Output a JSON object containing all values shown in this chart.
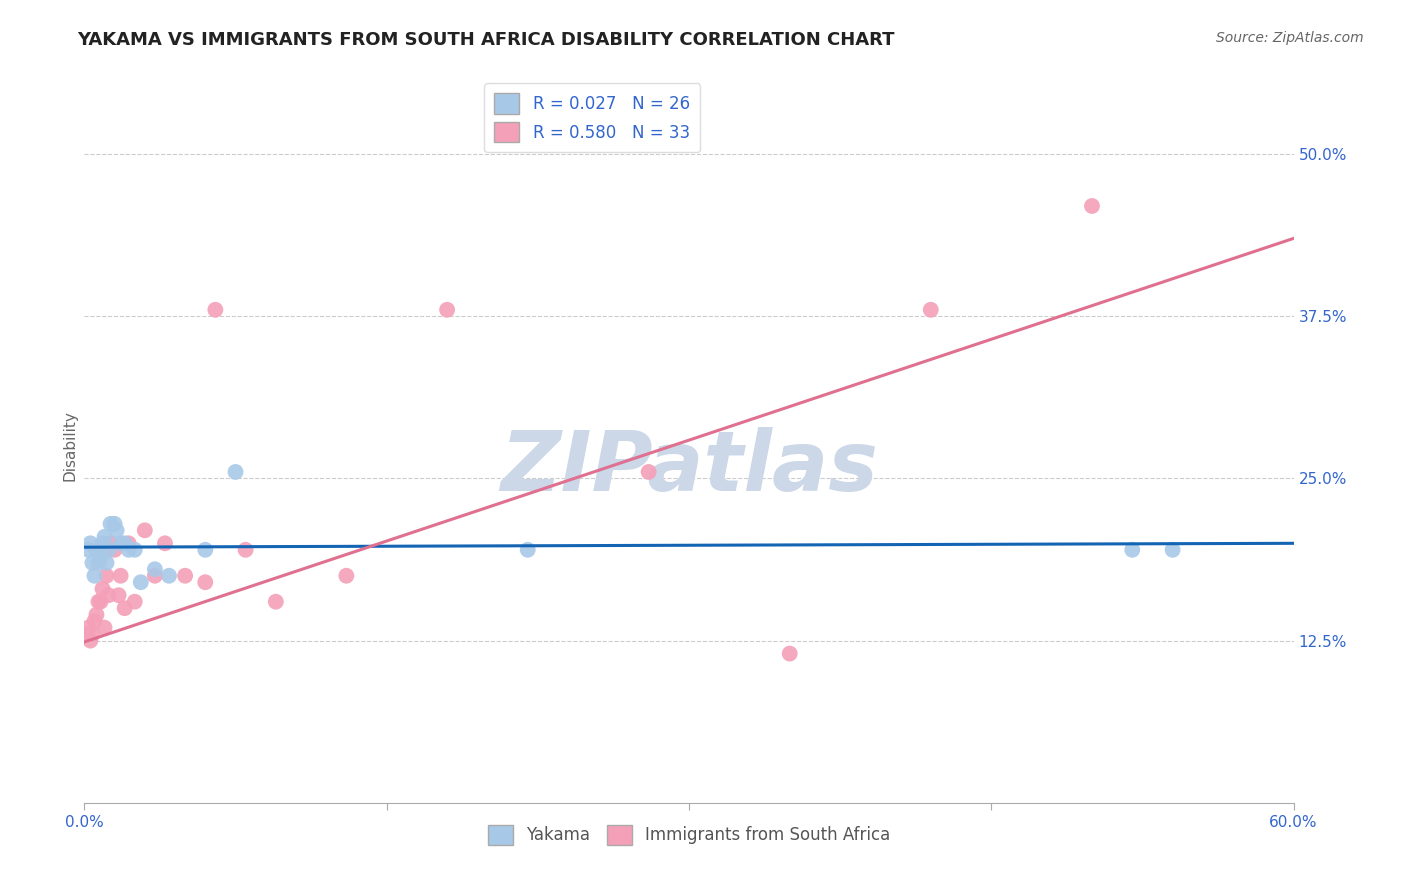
{
  "title": "YAKAMA VS IMMIGRANTS FROM SOUTH AFRICA DISABILITY CORRELATION CHART",
  "source": "Source: ZipAtlas.com",
  "ylabel": "Disability",
  "xlim": [
    0.0,
    0.6
  ],
  "ylim": [
    0.0,
    0.55
  ],
  "ytick_positions": [
    0.125,
    0.25,
    0.375,
    0.5
  ],
  "ytick_labels": [
    "12.5%",
    "25.0%",
    "37.5%",
    "50.0%"
  ],
  "grid_color": "#cccccc",
  "background_color": "#ffffff",
  "series1_label": "Yakama",
  "series1_color": "#A8C8E8",
  "series1_R": 0.027,
  "series1_N": 26,
  "series1_x": [
    0.002,
    0.003,
    0.004,
    0.005,
    0.006,
    0.007,
    0.008,
    0.009,
    0.01,
    0.011,
    0.012,
    0.013,
    0.015,
    0.016,
    0.018,
    0.02,
    0.022,
    0.025,
    0.028,
    0.035,
    0.042,
    0.06,
    0.075,
    0.22,
    0.52,
    0.54
  ],
  "series1_y": [
    0.195,
    0.2,
    0.185,
    0.175,
    0.195,
    0.185,
    0.19,
    0.2,
    0.205,
    0.185,
    0.195,
    0.215,
    0.215,
    0.21,
    0.2,
    0.2,
    0.195,
    0.195,
    0.17,
    0.18,
    0.175,
    0.195,
    0.255,
    0.195,
    0.195,
    0.195
  ],
  "series2_label": "Immigrants from South Africa",
  "series2_color": "#F4A0B8",
  "series2_R": 0.58,
  "series2_N": 33,
  "series2_x": [
    0.001,
    0.002,
    0.003,
    0.004,
    0.005,
    0.006,
    0.007,
    0.008,
    0.009,
    0.01,
    0.011,
    0.012,
    0.013,
    0.015,
    0.017,
    0.018,
    0.02,
    0.022,
    0.025,
    0.03,
    0.035,
    0.04,
    0.05,
    0.06,
    0.065,
    0.08,
    0.095,
    0.13,
    0.18,
    0.28,
    0.35,
    0.42,
    0.5
  ],
  "series2_y": [
    0.13,
    0.135,
    0.125,
    0.13,
    0.14,
    0.145,
    0.155,
    0.155,
    0.165,
    0.135,
    0.175,
    0.16,
    0.2,
    0.195,
    0.16,
    0.175,
    0.15,
    0.2,
    0.155,
    0.21,
    0.175,
    0.2,
    0.175,
    0.17,
    0.38,
    0.195,
    0.155,
    0.175,
    0.38,
    0.255,
    0.115,
    0.38,
    0.46
  ],
  "line1_color": "#1464B4",
  "line2_color": "#E07090",
  "line1_y_at_x0": 0.197,
  "line1_y_at_x60": 0.2,
  "line2_y_at_x0": 0.124,
  "line2_y_at_x60": 0.435,
  "watermark_text": "ZIPatlas",
  "watermark_color": "#ccd8e8",
  "title_fontsize": 13,
  "tick_fontsize": 11,
  "legend_fontsize": 12
}
